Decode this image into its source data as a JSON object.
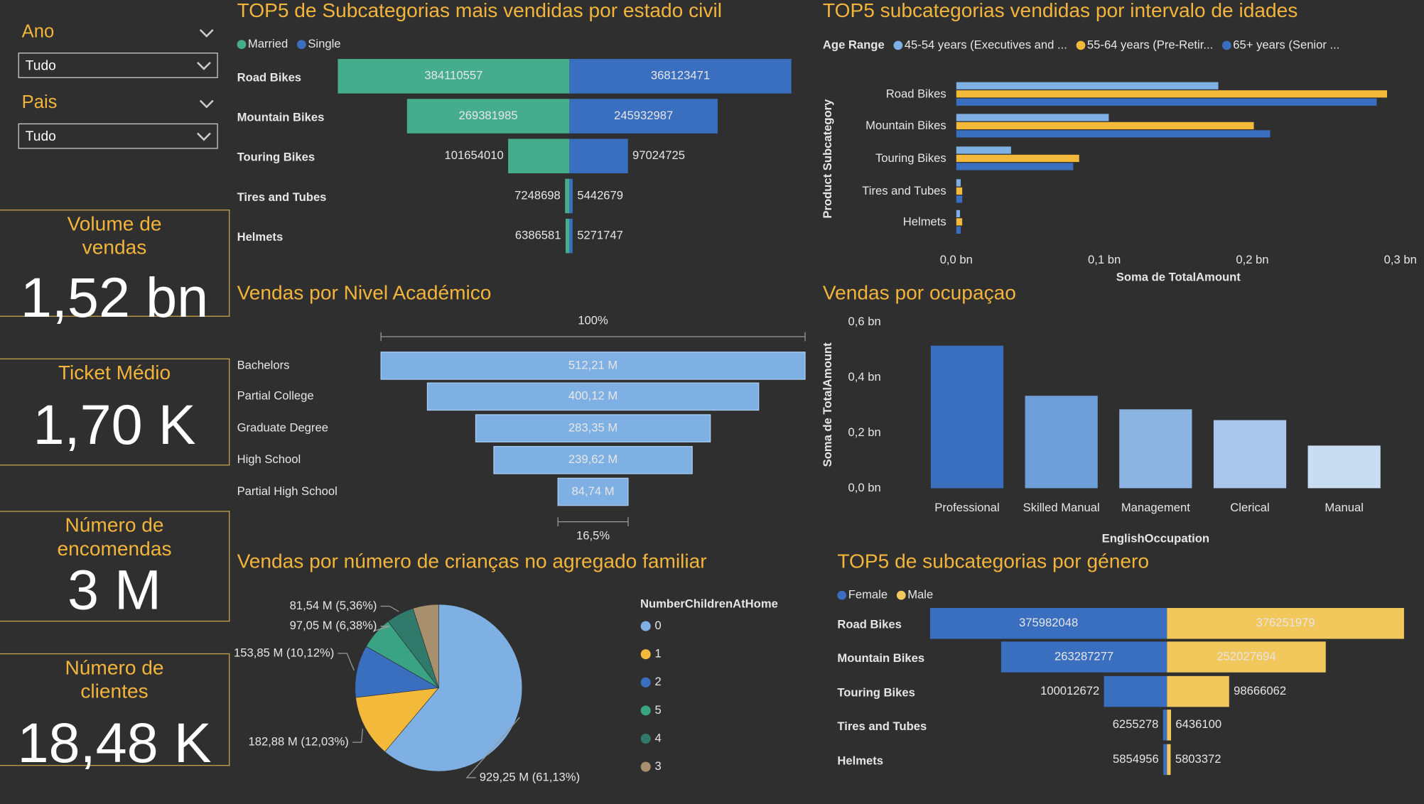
{
  "filters": [
    {
      "label": "Ano",
      "value": "Tudo"
    },
    {
      "label": "Pais",
      "value": "Tudo"
    }
  ],
  "kpis": [
    {
      "title": "Volume de vendas",
      "value": "1,52 bn"
    },
    {
      "title": "Ticket Médio",
      "value": "1,70 K"
    },
    {
      "title": "Número de encomendas",
      "value": "3 M"
    },
    {
      "title": "Número de clientes",
      "value": "18,48 K"
    }
  ],
  "chart_data": [
    {
      "type": "butterfly",
      "title": "TOP5 de Subcategorias mais vendidas por estado civil",
      "categories": [
        "Road Bikes",
        "Mountain Bikes",
        "Touring Bikes",
        "Tires and Tubes",
        "Helmets"
      ],
      "series": [
        {
          "name": "Married",
          "color": "#45ad8c",
          "values": [
            384110557,
            269381985,
            101654010,
            7248698,
            6386581
          ]
        },
        {
          "name": "Single",
          "color": "#3a6fc0",
          "values": [
            368123471,
            245932987,
            97024725,
            5442679,
            5271747
          ]
        }
      ]
    },
    {
      "type": "hbar",
      "title": "TOP5 subcategorias vendidas por intervalo de idades",
      "legend_title": "Age Range",
      "categories": [
        "Road Bikes",
        "Mountain Bikes",
        "Touring Bikes",
        "Tires and Tubes",
        "Helmets"
      ],
      "series": [
        {
          "name": "45-54 years (Executives and ...",
          "color": "#7fb0e4",
          "values": [
            0.177,
            0.103,
            0.037,
            0.003,
            0.0025
          ]
        },
        {
          "name": "55-64 years (Pre-Retir...",
          "color": "#f2b93b",
          "values": [
            0.291,
            0.201,
            0.083,
            0.004,
            0.004
          ]
        },
        {
          "name": "65+ years (Senior ...",
          "color": "#3a6fc0",
          "values": [
            0.284,
            0.212,
            0.079,
            0.004,
            0.003
          ]
        }
      ],
      "xlim": [
        0,
        0.3
      ],
      "xticks": [
        {
          "value": 0,
          "label": "0,0 bn"
        },
        {
          "value": 0.1,
          "label": "0,1 bn"
        },
        {
          "value": 0.2,
          "label": "0,2 bn"
        },
        {
          "value": 0.3,
          "label": "0,3 bn"
        }
      ],
      "xlabel": "Soma de TotalAmount",
      "ylabel": "Product Subcategory"
    },
    {
      "type": "funnel",
      "title": "Vendas por Nivel Académico",
      "categories": [
        "Bachelors",
        "Partial College",
        "Graduate Degree",
        "High School",
        "Partial High School"
      ],
      "values": [
        512.21,
        400.12,
        283.35,
        239.62,
        84.74
      ],
      "value_labels": [
        "512,21 M",
        "400,12 M",
        "283,35 M",
        "239,62 M",
        "84,74 M"
      ],
      "color": "#7fb0e4",
      "first_label": "100%",
      "last_label": "16,5%"
    },
    {
      "type": "bar",
      "title": "Vendas por ocupaçao",
      "categories": [
        "Professional",
        "Skilled Manual",
        "Management",
        "Clerical",
        "Manual"
      ],
      "values": [
        0.515,
        0.334,
        0.285,
        0.246,
        0.154
      ],
      "colors": [
        "#3a6fc0",
        "#6d9ed8",
        "#8cb4e2",
        "#a9c7ea",
        "#c8dcf2"
      ],
      "ylim": [
        0,
        0.6
      ],
      "yticks": [
        {
          "value": 0,
          "label": "0,0 bn"
        },
        {
          "value": 0.2,
          "label": "0,2 bn"
        },
        {
          "value": 0.4,
          "label": "0,4 bn"
        },
        {
          "value": 0.6,
          "label": "0,6 bn"
        }
      ],
      "xlabel": "EnglishOccupation",
      "ylabel": "Soma de TotalAmount"
    },
    {
      "type": "pie",
      "title": "Vendas por número de crianças no agregado familiar",
      "legend_title": "NumberChildrenAtHome",
      "categories": [
        "0",
        "1",
        "2",
        "5",
        "4",
        "3"
      ],
      "values": [
        929.25,
        182.88,
        153.85,
        97.05,
        81.54,
        75.7
      ],
      "value_labels": [
        "929,25 M (61,13%)",
        "182,88 M (12,03%)",
        "153,85 M (10,12%)",
        "97,05 M (6,38%)",
        "81,54 M (5,36%)",
        null
      ],
      "colors": [
        "#7fb0e4",
        "#f2b93b",
        "#3a6fc0",
        "#3aa383",
        "#2f7a6a",
        "#a88f6e"
      ]
    },
    {
      "type": "butterfly",
      "title": "TOP5 de subcategorias por género",
      "categories": [
        "Road Bikes",
        "Mountain Bikes",
        "Touring Bikes",
        "Tires and Tubes",
        "Helmets"
      ],
      "series": [
        {
          "name": "Female",
          "color": "#3a6fc0",
          "values": [
            375982048,
            263287277,
            100012672,
            6255278,
            5854956
          ]
        },
        {
          "name": "Male",
          "color": "#f2c75c",
          "values": [
            376251979,
            252027694,
            98666062,
            6436100,
            5803372
          ]
        }
      ]
    }
  ]
}
